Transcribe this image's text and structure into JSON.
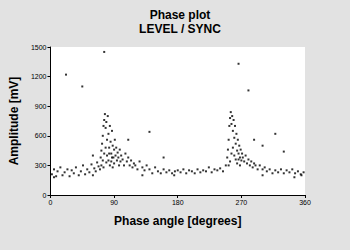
{
  "chart_data": {
    "type": "scatter",
    "title": "Phase plot",
    "subtitle": "LEVEL / SYNC",
    "xlabel": "Phase angle [degrees]",
    "ylabel": "Amplitude [mV]",
    "xlim": [
      0,
      360
    ],
    "xticks": [
      0,
      90,
      180,
      270,
      360
    ],
    "ylim": [
      0,
      1500
    ],
    "yticks": [
      0,
      300,
      600,
      900,
      1200,
      1500
    ],
    "grid": false,
    "color": "#000000",
    "marker": "square",
    "x": [
      2,
      5,
      8,
      10,
      14,
      17,
      20,
      24,
      27,
      30,
      33,
      36,
      40,
      43,
      46,
      49,
      52,
      55,
      58,
      60,
      62,
      64,
      66,
      68,
      70,
      71,
      72,
      73,
      74,
      75,
      76,
      77,
      78,
      79,
      80,
      81,
      82,
      83,
      84,
      85,
      86,
      87,
      88,
      89,
      90,
      72,
      74,
      76,
      78,
      80,
      82,
      84,
      86,
      88,
      90,
      75,
      79,
      83,
      87,
      91,
      92,
      93,
      94,
      95,
      96,
      97,
      98,
      99,
      100,
      102,
      104,
      106,
      108,
      110,
      112,
      114,
      116,
      118,
      120,
      123,
      126,
      130,
      133,
      136,
      140,
      144,
      148,
      152,
      156,
      160,
      164,
      168,
      172,
      176,
      180,
      184,
      188,
      192,
      196,
      200,
      204,
      208,
      212,
      216,
      220,
      224,
      228,
      232,
      236,
      240,
      244,
      248,
      250,
      251,
      252,
      253,
      254,
      255,
      256,
      257,
      258,
      259,
      260,
      261,
      262,
      263,
      264,
      265,
      266,
      267,
      268,
      269,
      270,
      252,
      254,
      256,
      258,
      260,
      262,
      264,
      266,
      268,
      271,
      272,
      274,
      276,
      278,
      280,
      282,
      284,
      286,
      288,
      290,
      293,
      296,
      300,
      303,
      306,
      310,
      314,
      318,
      322,
      326,
      330,
      334,
      338,
      342,
      346,
      350,
      354,
      358,
      345,
      355,
      5,
      130,
      175,
      300,
      22,
      76,
      266,
      110,
      140,
      288,
      300,
      330,
      160,
      60,
      45,
      280,
      318
    ],
    "values": [
      210,
      260,
      190,
      240,
      280,
      200,
      230,
      260,
      190,
      250,
      220,
      280,
      200,
      240,
      300,
      210,
      260,
      230,
      310,
      200,
      270,
      240,
      330,
      290,
      260,
      380,
      450,
      520,
      600,
      700,
      760,
      820,
      680,
      740,
      560,
      800,
      620,
      480,
      700,
      540,
      420,
      650,
      500,
      380,
      460,
      300,
      350,
      420,
      480,
      400,
      350,
      300,
      340,
      280,
      320,
      280,
      330,
      420,
      380,
      560,
      400,
      480,
      350,
      430,
      380,
      300,
      460,
      340,
      400,
      360,
      300,
      420,
      340,
      380,
      300,
      350,
      280,
      320,
      300,
      260,
      340,
      280,
      250,
      300,
      260,
      220,
      280,
      240,
      220,
      260,
      230,
      250,
      220,
      240,
      250,
      230,
      260,
      220,
      250,
      240,
      220,
      260,
      230,
      250,
      240,
      280,
      230,
      260,
      250,
      270,
      240,
      300,
      380,
      460,
      560,
      700,
      780,
      840,
      720,
      800,
      650,
      760,
      580,
      700,
      520,
      620,
      450,
      560,
      420,
      500,
      380,
      460,
      350,
      300,
      340,
      420,
      480,
      400,
      360,
      320,
      360,
      300,
      420,
      380,
      340,
      400,
      320,
      360,
      300,
      340,
      280,
      320,
      300,
      260,
      300,
      260,
      280,
      240,
      260,
      220,
      250,
      230,
      260,
      220,
      250,
      230,
      260,
      220,
      240,
      210,
      230,
      180,
      200,
      180,
      200,
      200,
      200,
      1220,
      1450,
      1330,
      560,
      640,
      560,
      500,
      440,
      380,
      400,
      1100,
      1060,
      620
    ]
  }
}
